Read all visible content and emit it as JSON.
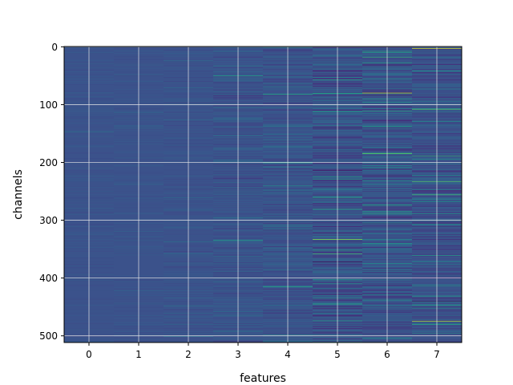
{
  "chart_data": {
    "type": "heatmap",
    "xlabel": "features",
    "ylabel": "channels",
    "x_categories": [
      "0",
      "1",
      "2",
      "3",
      "4",
      "5",
      "6",
      "7"
    ],
    "x_tick_labels": [
      "0",
      "1",
      "2",
      "3",
      "4",
      "5",
      "6",
      "7"
    ],
    "y_tick_values": [
      0,
      100,
      200,
      300,
      400,
      500
    ],
    "y_tick_labels": [
      "0",
      "100",
      "200",
      "300",
      "400",
      "500"
    ],
    "ylim": [
      511.5,
      -0.5
    ],
    "xlim": [
      -0.5,
      7.5
    ],
    "rows": 512,
    "grid": true,
    "colormap": "viridis",
    "background_color": "#3b528b",
    "column_variability": [
      0.03,
      0.03,
      0.04,
      0.07,
      0.09,
      0.16,
      0.14,
      0.13
    ],
    "notable_bright_rows": [
      {
        "feature": 3,
        "channel": 50,
        "level": 0.55
      },
      {
        "feature": 3,
        "channel": 335,
        "level": 0.55
      },
      {
        "feature": 4,
        "channel": 82,
        "level": 0.6
      },
      {
        "feature": 4,
        "channel": 200,
        "level": 0.6
      },
      {
        "feature": 4,
        "channel": 415,
        "level": 0.6
      },
      {
        "feature": 5,
        "channel": 57,
        "level": 0.6
      },
      {
        "feature": 5,
        "channel": 333,
        "level": 0.8
      },
      {
        "feature": 5,
        "channel": 358,
        "level": 0.7
      },
      {
        "feature": 6,
        "channel": 18,
        "level": 0.65
      },
      {
        "feature": 6,
        "channel": 80,
        "level": 0.9
      },
      {
        "feature": 6,
        "channel": 185,
        "level": 0.75
      },
      {
        "feature": 7,
        "channel": 3,
        "level": 0.95
      },
      {
        "feature": 7,
        "channel": 108,
        "level": 0.75
      },
      {
        "feature": 7,
        "channel": 233,
        "level": 0.75
      },
      {
        "feature": 7,
        "channel": 256,
        "level": 0.7
      },
      {
        "feature": 7,
        "channel": 475,
        "level": 0.9
      }
    ],
    "notable_dark_rows": [
      {
        "feature": 5,
        "channel": 140,
        "level": 0.05
      },
      {
        "feature": 5,
        "channel": 372,
        "level": 0.0
      },
      {
        "feature": 6,
        "channel": 223,
        "level": 0.1
      },
      {
        "feature": 7,
        "channel": 440,
        "level": 0.05
      }
    ]
  }
}
